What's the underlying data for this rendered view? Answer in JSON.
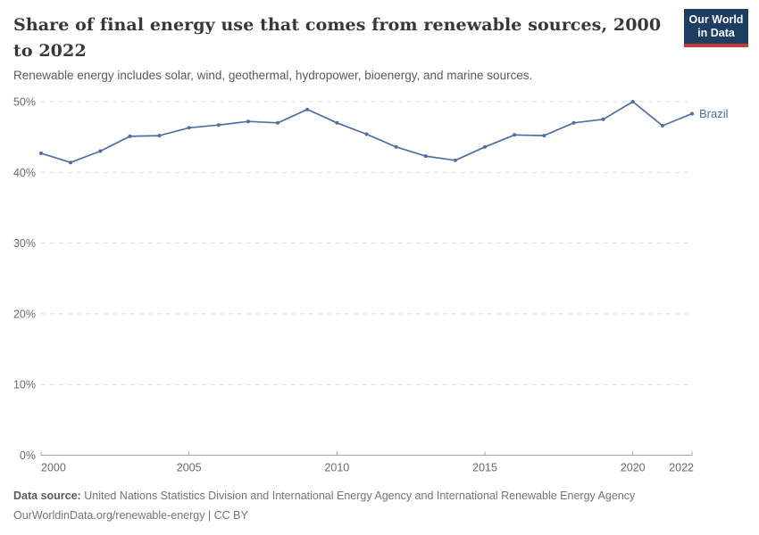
{
  "header": {
    "title": "Share of final energy use that comes from renewable sources, 2000 to 2022",
    "subtitle": "Renewable energy includes solar, wind, geothermal, hydropower, bioenergy, and marine sources.",
    "logo": {
      "line1": "Our World",
      "line2": "in Data",
      "bg_color": "#1d3d63",
      "accent_color": "#c53a32"
    }
  },
  "chart_data": {
    "type": "line",
    "title": "Share of final energy use that comes from renewable sources, 2000 to 2022",
    "x": [
      2000,
      2001,
      2002,
      2003,
      2004,
      2005,
      2006,
      2007,
      2008,
      2009,
      2010,
      2011,
      2012,
      2013,
      2014,
      2015,
      2016,
      2017,
      2018,
      2019,
      2020,
      2021,
      2022
    ],
    "series": [
      {
        "name": "Brazil",
        "color": "#4c6ea9",
        "values": [
          42.7,
          41.4,
          43.0,
          45.1,
          45.2,
          46.3,
          46.7,
          47.2,
          47.0,
          48.9,
          47.0,
          45.4,
          43.6,
          42.3,
          41.7,
          43.6,
          45.3,
          45.2,
          47.0,
          47.5,
          50.0,
          46.6,
          48.3
        ]
      }
    ],
    "ylabel": "",
    "xlabel": "",
    "ylim": [
      0,
      50
    ],
    "yticks": [
      0,
      10,
      20,
      30,
      40,
      50
    ],
    "ytick_suffix": "%",
    "xticks": [
      2000,
      2005,
      2010,
      2015,
      2020,
      2022
    ],
    "grid": "horizontal-dashed",
    "legend_position": "end-of-line",
    "end_label": "Brazil"
  },
  "footer": {
    "source_label": "Data source:",
    "source_text": "United Nations Statistics Division and International Energy Agency and International Renewable Energy Agency",
    "license_text": "OurWorldinData.org/renewable-energy | CC BY"
  },
  "colors": {
    "grid": "#dcdcdc",
    "axis": "#a5a5a5",
    "tick_label": "#6b6b6b"
  }
}
